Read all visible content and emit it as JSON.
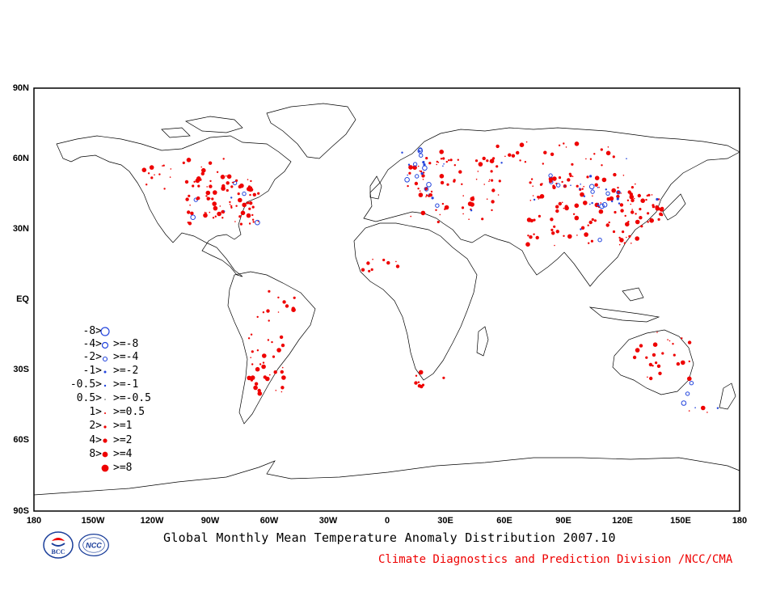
{
  "map": {
    "lat_labels": [
      "90N",
      "60N",
      "30N",
      "EQ",
      "30S",
      "60S",
      "90S"
    ],
    "lon_labels": [
      "180",
      "150W",
      "120W",
      "90W",
      "60W",
      "30W",
      "0",
      "30E",
      "60E",
      "90E",
      "120E",
      "150E",
      "180"
    ],
    "positive_color": "#ee0000",
    "negative_color": "#2244dd"
  },
  "legend": {
    "rows": [
      {
        "left": "-8>",
        "right": ""
      },
      {
        "left": "-4>",
        "right": ">=-8"
      },
      {
        "left": "-2>",
        "right": ">=-4"
      },
      {
        "left": "-1>",
        "right": ">=-2"
      },
      {
        "left": "-0.5>",
        "right": ">=-1"
      },
      {
        "left": "0.5>",
        "right": ">=-0.5"
      },
      {
        "left": "1>",
        "right": ">=0.5"
      },
      {
        "left": "2>",
        "right": ">=1"
      },
      {
        "left": "4>",
        "right": ">=2"
      },
      {
        "left": "8>",
        "right": ">=4"
      },
      {
        "left": "",
        "right": ">=8"
      }
    ]
  },
  "footer": {
    "title": "Global Monthly Mean Temperature Anomaly Distribution 2007.10",
    "credit": "Climate Diagnostics and Prediction Division /NCC/CMA"
  },
  "logos": {
    "bcc": "BCC",
    "ncc": "NCC"
  }
}
